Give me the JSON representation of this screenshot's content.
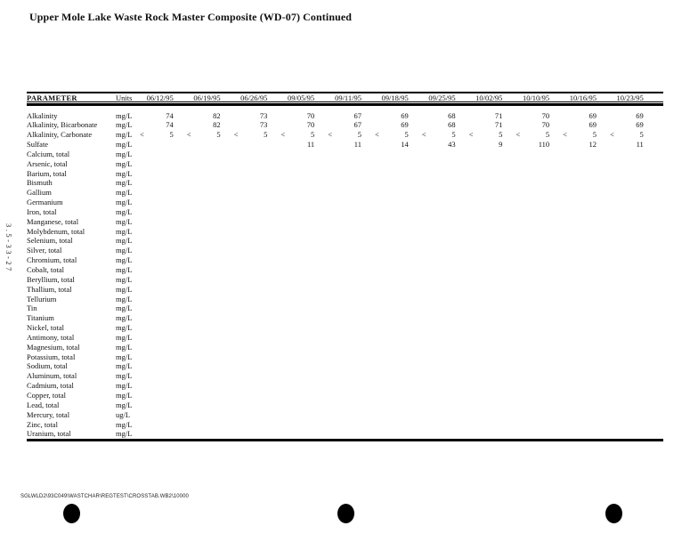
{
  "page": {
    "title": "Upper Mole Lake Waste Rock Master Composite (WD-07) Continued",
    "margin_code": "3.5-33-27",
    "footer_path": "SGLWLD2\\93C049\\WASTCHAR\\REGTEST\\CROSSTAB.WB2\\10000"
  },
  "table": {
    "param_header": "PARAMETER",
    "units_header": "Units",
    "dates": [
      "06/12/95",
      "06/19/95",
      "06/26/95",
      "09/05/95",
      "09/11/95",
      "09/18/95",
      "09/25/95",
      "10/02/95",
      "10/10/95",
      "10/16/95",
      "10/23/95"
    ],
    "rows": [
      {
        "param": "Alkalinity",
        "units": "mg/L",
        "cells": [
          [
            "",
            "74"
          ],
          [
            "",
            "82"
          ],
          [
            "",
            "73"
          ],
          [
            "",
            "70"
          ],
          [
            "",
            "67"
          ],
          [
            "",
            "69"
          ],
          [
            "",
            "68"
          ],
          [
            "",
            "71"
          ],
          [
            "",
            "70"
          ],
          [
            "",
            "69"
          ],
          [
            "",
            "69"
          ]
        ]
      },
      {
        "param": "Alkalinity, Bicarbonate",
        "units": "mg/L",
        "cells": [
          [
            "",
            "74"
          ],
          [
            "",
            "82"
          ],
          [
            "",
            "73"
          ],
          [
            "",
            "70"
          ],
          [
            "",
            "67"
          ],
          [
            "",
            "69"
          ],
          [
            "",
            "68"
          ],
          [
            "",
            "71"
          ],
          [
            "",
            "70"
          ],
          [
            "",
            "69"
          ],
          [
            "",
            "69"
          ]
        ]
      },
      {
        "param": "Alkalinity, Carbonate",
        "units": "mg/L",
        "cells": [
          [
            "<",
            "5"
          ],
          [
            "<",
            "5"
          ],
          [
            "<",
            "5"
          ],
          [
            "<",
            "5"
          ],
          [
            "<",
            "5"
          ],
          [
            "<",
            "5"
          ],
          [
            "<",
            "5"
          ],
          [
            "<",
            "5"
          ],
          [
            "<",
            "5"
          ],
          [
            "<",
            "5"
          ],
          [
            "<",
            "5"
          ]
        ]
      },
      {
        "param": "Sulfate",
        "units": "mg/L",
        "cells": [
          [
            "",
            ""
          ],
          [
            "",
            ""
          ],
          [
            "",
            ""
          ],
          [
            "",
            "11"
          ],
          [
            "",
            "11"
          ],
          [
            "",
            "14"
          ],
          [
            "",
            "43"
          ],
          [
            "",
            "9"
          ],
          [
            "",
            "110"
          ],
          [
            "",
            "12"
          ],
          [
            "",
            "11"
          ]
        ]
      },
      {
        "param": "Calcium, total",
        "units": "mg/L",
        "cells": []
      },
      {
        "param": "Arsenic, total",
        "units": "mg/L",
        "cells": []
      },
      {
        "param": "Barium, total",
        "units": "mg/L",
        "cells": []
      },
      {
        "param": "Bismuth",
        "units": "mg/L",
        "cells": []
      },
      {
        "param": "Gallium",
        "units": "mg/L",
        "cells": []
      },
      {
        "param": "Germanium",
        "units": "mg/L",
        "cells": []
      },
      {
        "param": "Iron, total",
        "units": "mg/L",
        "cells": []
      },
      {
        "param": "Manganese, total",
        "units": "mg/L",
        "cells": []
      },
      {
        "param": "Molybdenum, total",
        "units": "mg/L",
        "cells": []
      },
      {
        "param": "Selenium, total",
        "units": "mg/L",
        "cells": []
      },
      {
        "param": "Silver, total",
        "units": "mg/L",
        "cells": []
      },
      {
        "param": "Chromium, total",
        "units": "mg/L",
        "cells": []
      },
      {
        "param": "Cobalt, total",
        "units": "mg/L",
        "cells": []
      },
      {
        "param": "Beryllium, total",
        "units": "mg/L",
        "cells": []
      },
      {
        "param": "Thallium, total",
        "units": "mg/L",
        "cells": []
      },
      {
        "param": "Tellurium",
        "units": "mg/L",
        "cells": []
      },
      {
        "param": "Tin",
        "units": "mg/L",
        "cells": []
      },
      {
        "param": "Titanium",
        "units": "mg/L",
        "cells": []
      },
      {
        "param": "Nickel, total",
        "units": "mg/L",
        "cells": []
      },
      {
        "param": "Antimony, total",
        "units": "mg/L",
        "cells": []
      },
      {
        "param": "Magnesium, total",
        "units": "mg/L",
        "cells": []
      },
      {
        "param": "Potassium, total",
        "units": "mg/L",
        "cells": []
      },
      {
        "param": "Sodium, total",
        "units": "mg/L",
        "cells": []
      },
      {
        "param": "Aluminum, total",
        "units": "mg/L",
        "cells": []
      },
      {
        "param": "Cadmium, total",
        "units": "mg/L",
        "cells": []
      },
      {
        "param": "Copper, total",
        "units": "mg/L",
        "cells": []
      },
      {
        "param": "Lead, total",
        "units": "mg/L",
        "cells": []
      },
      {
        "param": "Mercury, total",
        "units": "ug/L",
        "cells": []
      },
      {
        "param": "Zinc, total",
        "units": "mg/L",
        "cells": []
      },
      {
        "param": "Uranium, total",
        "units": "mg/L",
        "cells": []
      }
    ]
  }
}
